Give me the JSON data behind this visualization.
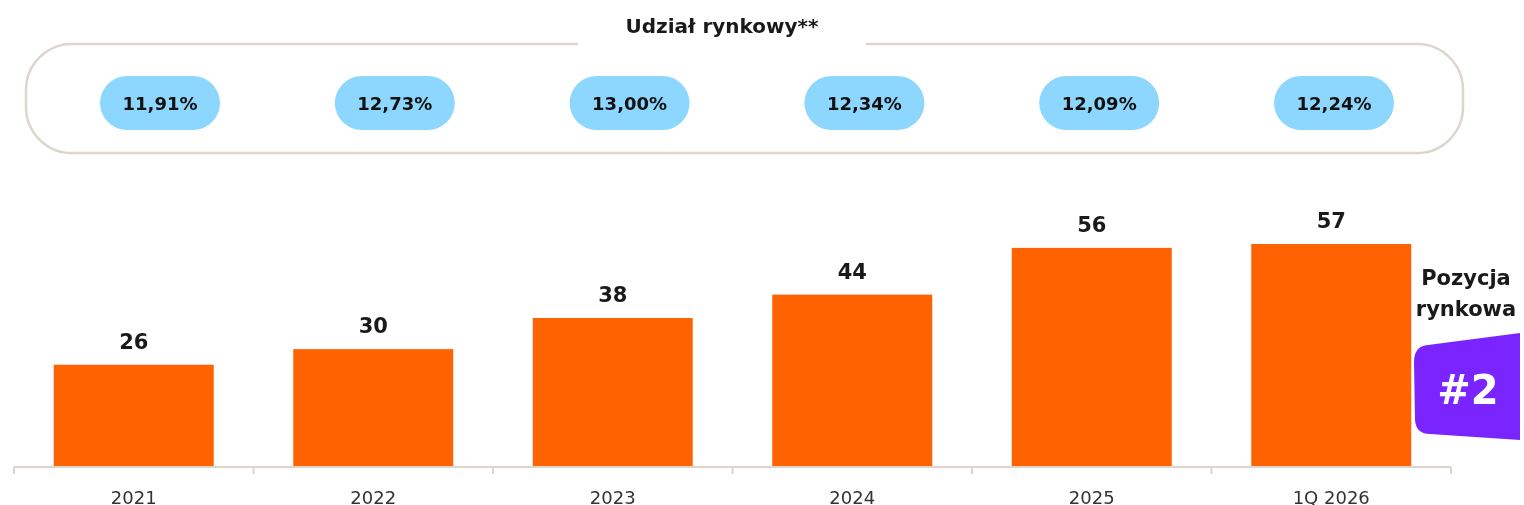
{
  "chart_data": {
    "type": "bar",
    "title": "Udział rynkowy**",
    "categories": [
      "2021",
      "2022",
      "2023",
      "2024",
      "2025",
      "1Q 2026"
    ],
    "values": [
      26,
      30,
      38,
      44,
      56,
      57
    ],
    "color": "#ff6200",
    "data_labels": true,
    "annotations": [
      "11,91%",
      "12,73%",
      "13,00%",
      "12,34%",
      "12,09%",
      "12,24%",
      "Pozycja rynkowa",
      "#2"
    ]
  }
}
